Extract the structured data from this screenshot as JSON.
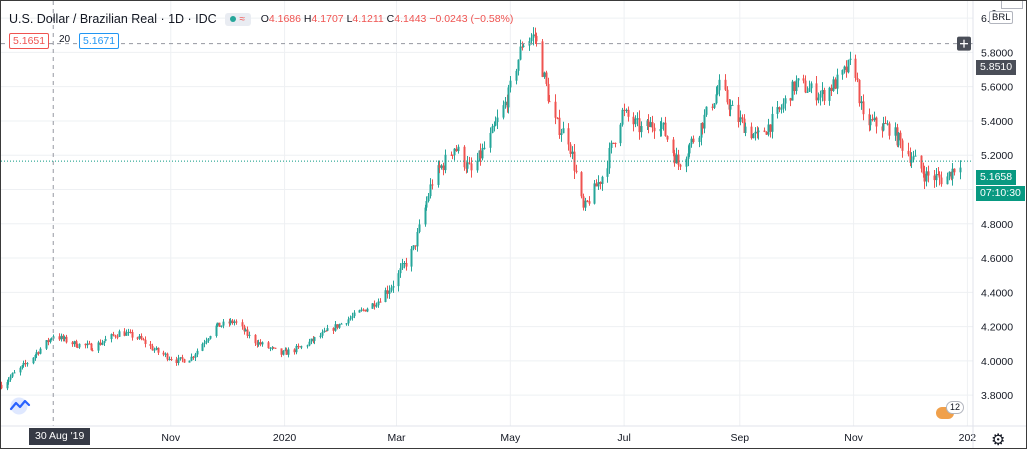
{
  "header": {
    "title": "U.S. Dollar / Brazilian Real · 1D · IDC",
    "ohlc": {
      "o_label": "O",
      "o": "4.1686",
      "h_label": "H",
      "h": "4.1707",
      "l_label": "L",
      "l": "4.1211",
      "c_label": "C",
      "c": "4.1443",
      "change": "−0.0243 (−0.58%)"
    },
    "indicator_icon": "eye-wave-icon"
  },
  "quotes": {
    "bid": "5.1651",
    "spread": "20",
    "ask": "5.1671"
  },
  "price_axis": {
    "currency": "BRL",
    "top_partial_label": "6",
    "crosshair_price": "5.8510",
    "last_price": "5.1658",
    "countdown": "07:10:30"
  },
  "time_axis": {
    "crosshair_date": "30 Aug '19",
    "labels": [
      "Nov",
      "2020",
      "Mar",
      "May",
      "Jul",
      "Sep",
      "Nov",
      "202"
    ]
  },
  "events_badge": {
    "count": "12",
    "icon": "flag-event-icon"
  },
  "colors": {
    "up": "#26a69a",
    "down": "#ef5350",
    "grid": "#eef0f3",
    "crosshair": "#9598a1",
    "last_price_line": "#089981",
    "axis_tag": "#4a4e58"
  },
  "chart_data": {
    "type": "candlestick",
    "title": "U.S. Dollar / Brazilian Real · 1D · IDC",
    "ylim": [
      3.62,
      6.1
    ],
    "yticks": [
      3.8,
      4.0,
      4.2,
      4.4,
      4.6,
      4.8,
      5.0,
      5.2,
      5.4,
      5.6,
      5.8,
      6.0
    ],
    "y_tick_labels": [
      "3.8000",
      "4.0000",
      "4.2000",
      "4.4000",
      "4.6000",
      "4.8000",
      "5.0000",
      "5.2000",
      "5.4000",
      "5.6000",
      "5.8000",
      "6.0000"
    ],
    "xlim": [
      "2019-08-02",
      "2021-01-04"
    ],
    "x_ticks": [
      "2019-11-01",
      "2020-01-01",
      "2020-03-01",
      "2020-05-01",
      "2020-07-01",
      "2020-09-01",
      "2020-11-01",
      "2021-01-01"
    ],
    "grid": true,
    "crosshair": {
      "date": "2019-08-30",
      "price": 5.851
    },
    "last_price": 5.1658,
    "close_path": [
      [
        "2019-08-02",
        3.86
      ],
      [
        "2019-08-15",
        3.98
      ],
      [
        "2019-08-30",
        4.15
      ],
      [
        "2019-09-10",
        4.1
      ],
      [
        "2019-09-20",
        4.08
      ],
      [
        "2019-10-05",
        4.17
      ],
      [
        "2019-10-15",
        4.13
      ],
      [
        "2019-10-25",
        4.05
      ],
      [
        "2019-11-05",
        4.0
      ],
      [
        "2019-11-12",
        4.02
      ],
      [
        "2019-11-25",
        4.2
      ],
      [
        "2019-12-05",
        4.23
      ],
      [
        "2019-12-15",
        4.12
      ],
      [
        "2019-12-30",
        4.04
      ],
      [
        "2020-01-10",
        4.08
      ],
      [
        "2020-01-25",
        4.18
      ],
      [
        "2020-02-05",
        4.25
      ],
      [
        "2020-02-20",
        4.35
      ],
      [
        "2020-03-01",
        4.48
      ],
      [
        "2020-03-10",
        4.65
      ],
      [
        "2020-03-20",
        5.05
      ],
      [
        "2020-04-01",
        5.25
      ],
      [
        "2020-04-10",
        5.1
      ],
      [
        "2020-04-20",
        5.3
      ],
      [
        "2020-04-30",
        5.55
      ],
      [
        "2020-05-07",
        5.85
      ],
      [
        "2020-05-14",
        5.9
      ],
      [
        "2020-05-24",
        5.4
      ],
      [
        "2020-06-01",
        5.3
      ],
      [
        "2020-06-09",
        4.88
      ],
      [
        "2020-06-20",
        5.1
      ],
      [
        "2020-06-30",
        5.45
      ],
      [
        "2020-07-10",
        5.35
      ],
      [
        "2020-07-20",
        5.4
      ],
      [
        "2020-07-30",
        5.15
      ],
      [
        "2020-08-10",
        5.35
      ],
      [
        "2020-08-21",
        5.6
      ],
      [
        "2020-08-30",
        5.42
      ],
      [
        "2020-09-10",
        5.3
      ],
      [
        "2020-09-20",
        5.42
      ],
      [
        "2020-10-01",
        5.62
      ],
      [
        "2020-10-15",
        5.55
      ],
      [
        "2020-10-25",
        5.65
      ],
      [
        "2020-11-01",
        5.76
      ],
      [
        "2020-11-06",
        5.4
      ],
      [
        "2020-11-20",
        5.36
      ],
      [
        "2020-12-01",
        5.2
      ],
      [
        "2020-12-10",
        5.08
      ],
      [
        "2020-12-20",
        5.06
      ],
      [
        "2020-12-28",
        5.17
      ]
    ]
  }
}
